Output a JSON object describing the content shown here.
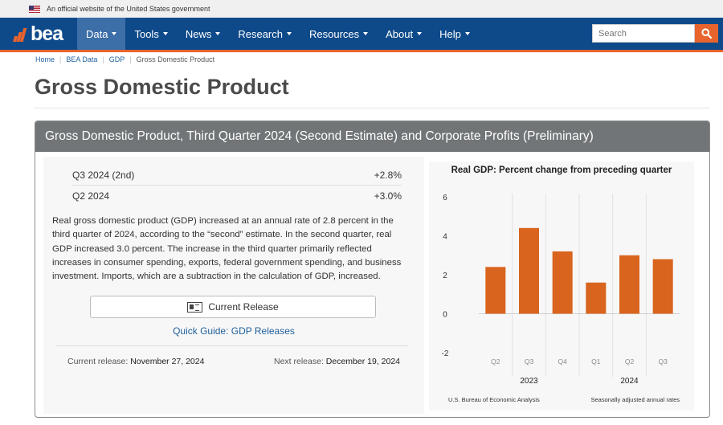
{
  "gov_banner": {
    "text": "An official website of the United States government"
  },
  "header": {
    "logo_text": "bea",
    "nav": [
      {
        "label": "Data",
        "active": true
      },
      {
        "label": "Tools",
        "active": false
      },
      {
        "label": "News",
        "active": false
      },
      {
        "label": "Research",
        "active": false
      },
      {
        "label": "Resources",
        "active": false
      },
      {
        "label": "About",
        "active": false
      },
      {
        "label": "Help",
        "active": false
      }
    ],
    "search_placeholder": "Search",
    "colors": {
      "nav_bg": "#0e4a8a",
      "accent": "#e8642c"
    }
  },
  "breadcrumb": [
    "Home",
    "BEA Data",
    "GDP",
    "Gross Domestic Product"
  ],
  "page_title": "Gross Domestic Product",
  "panel": {
    "title": "Gross Domestic Product, Third Quarter 2024 (Second Estimate) and Corporate Profits (Preliminary)",
    "stats": [
      {
        "label": "Q3 2024 (2nd)",
        "value": "+2.8%"
      },
      {
        "label": "Q2 2024",
        "value": "+3.0%"
      }
    ],
    "summary": "Real gross domestic product (GDP) increased at an annual rate of 2.8 percent in the third quarter of 2024, according to the “second” estimate. In the second quarter, real GDP increased 3.0 percent. The increase in the third quarter primarily reflected increases in consumer spending, exports, federal government spending, and business investment. Imports, which are a subtraction in the calculation of GDP, increased.",
    "release_button": "Current Release",
    "quick_guide": "Quick Guide: GDP Releases",
    "current_release_label": "Current release:",
    "current_release_date": "November 27, 2024",
    "next_release_label": "Next release:",
    "next_release_date": "December 19, 2024"
  },
  "chart_data": {
    "type": "bar",
    "title": "Real GDP:  Percent change from preceding quarter",
    "categories": [
      "Q2",
      "Q3",
      "Q4",
      "Q1",
      "Q2",
      "Q3"
    ],
    "groups": [
      {
        "label": "2023",
        "categories": [
          "Q2",
          "Q3",
          "Q4"
        ]
      },
      {
        "label": "2024",
        "categories": [
          "Q1",
          "Q2",
          "Q3"
        ]
      }
    ],
    "values": [
      2.4,
      4.4,
      3.2,
      1.6,
      3.0,
      2.8
    ],
    "ylim": [
      -2,
      6
    ],
    "yticks": [
      -2,
      0,
      2,
      4,
      6
    ],
    "bar_color": "#d9641e",
    "source_note": "U.S. Bureau of Economic Analysis",
    "rate_note": "Seasonally adjusted annual rates"
  }
}
